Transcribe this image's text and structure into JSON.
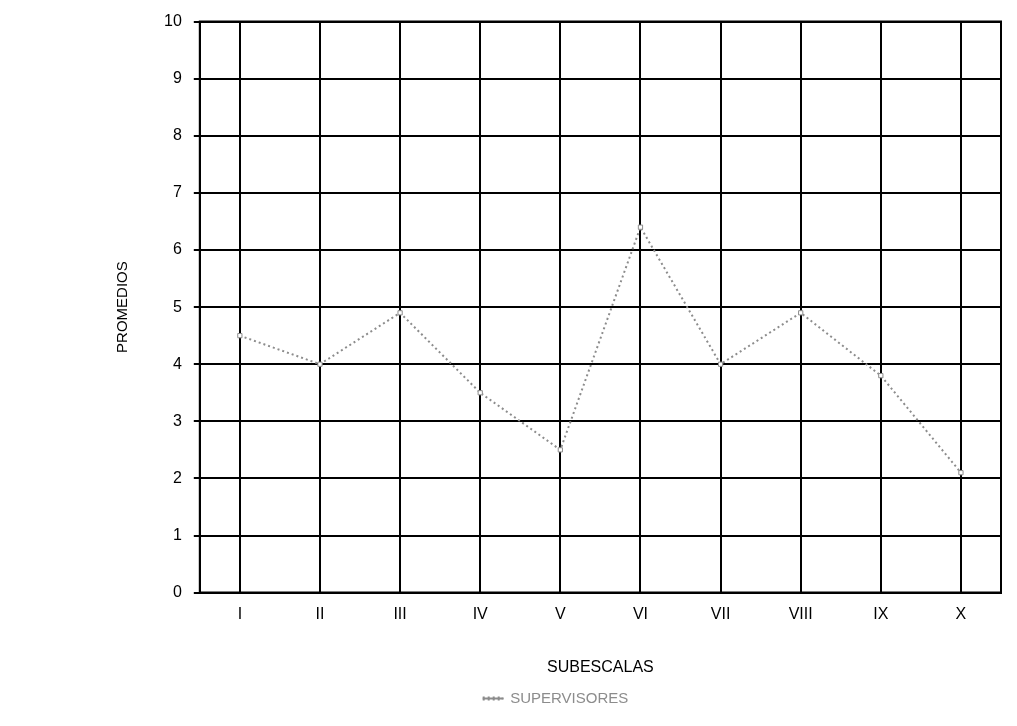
{
  "chart_data": {
    "type": "line",
    "xlabel": "SUBESCALAS",
    "ylabel": "PROMEDIOS",
    "categories": [
      "I",
      "II",
      "III",
      "IV",
      "V",
      "VI",
      "VII",
      "VIII",
      "IX",
      "X"
    ],
    "series": [
      {
        "name": "SUPERVISORES",
        "color": "#8c8c8c",
        "values": [
          4.5,
          4.0,
          4.9,
          3.5,
          2.5,
          6.4,
          4.0,
          4.9,
          3.8,
          2.1
        ]
      }
    ],
    "ylim": [
      0,
      10
    ],
    "yticks": [
      0,
      1,
      2,
      3,
      4,
      5,
      6,
      7,
      8,
      9,
      10
    ],
    "grid": true,
    "legend": "bottom",
    "marker": "square",
    "line_style": "dotted"
  }
}
